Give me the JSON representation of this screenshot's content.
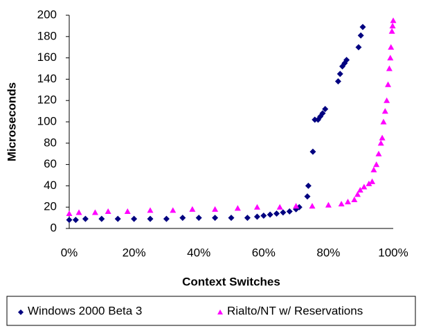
{
  "chart_data": {
    "type": "scatter",
    "x_label": "Context Switches",
    "y_label": "Microseconds",
    "xlim": [
      0,
      100
    ],
    "xticks": [
      {
        "value": 0,
        "label": "0%"
      },
      {
        "value": 20,
        "label": "20%"
      },
      {
        "value": 40,
        "label": "40%"
      },
      {
        "value": 60,
        "label": "60%"
      },
      {
        "value": 80,
        "label": "80%"
      },
      {
        "value": 100,
        "label": "100%"
      }
    ],
    "ylim": [
      0,
      200
    ],
    "yticks": [
      0,
      20,
      40,
      60,
      80,
      100,
      120,
      140,
      160,
      180,
      200
    ],
    "legend": "bottom",
    "series": [
      {
        "name": "Windows 2000 Beta 3",
        "color": "#000080",
        "marker": "diamond",
        "x": [
          0,
          2,
          5,
          10,
          15,
          20,
          25,
          30,
          35,
          40,
          45,
          50,
          55,
          58,
          60,
          62,
          64,
          66,
          68,
          70,
          71,
          73.5,
          73.8,
          75.2,
          75.8,
          76.8,
          77.5,
          78.2,
          79,
          83,
          83.6,
          84.3,
          85,
          85.6,
          89.3,
          90,
          90.6
        ],
        "values": [
          8,
          8,
          9,
          9,
          9,
          9,
          9,
          9,
          10,
          10,
          10,
          10,
          10,
          11,
          12,
          13,
          14,
          15,
          16,
          18,
          20,
          30,
          40,
          72,
          102,
          102,
          105,
          108,
          112,
          138,
          145,
          152,
          155,
          158,
          170,
          181,
          189
        ]
      },
      {
        "name": "Rialto/NT w/ Reservations",
        "color": "#ff00ff",
        "marker": "triangle",
        "x": [
          0,
          3,
          8,
          12,
          18,
          25,
          32,
          38,
          45,
          52,
          58,
          65,
          70,
          75,
          80,
          84,
          86,
          88,
          89,
          89.8,
          91,
          92.5,
          93.5,
          94,
          94.8,
          95.5,
          96.2,
          96.6,
          97,
          97.5,
          98,
          98.4,
          98.8,
          99.1,
          99.3,
          99.6,
          99.8,
          100
        ],
        "values": [
          14,
          15,
          15,
          16,
          16,
          17,
          17,
          18,
          18,
          19,
          20,
          20,
          21,
          21,
          22,
          23,
          25,
          27,
          32,
          36,
          39,
          42,
          44,
          55,
          60,
          70,
          80,
          85,
          100,
          110,
          120,
          135,
          150,
          160,
          170,
          185,
          190,
          195
        ]
      }
    ]
  }
}
